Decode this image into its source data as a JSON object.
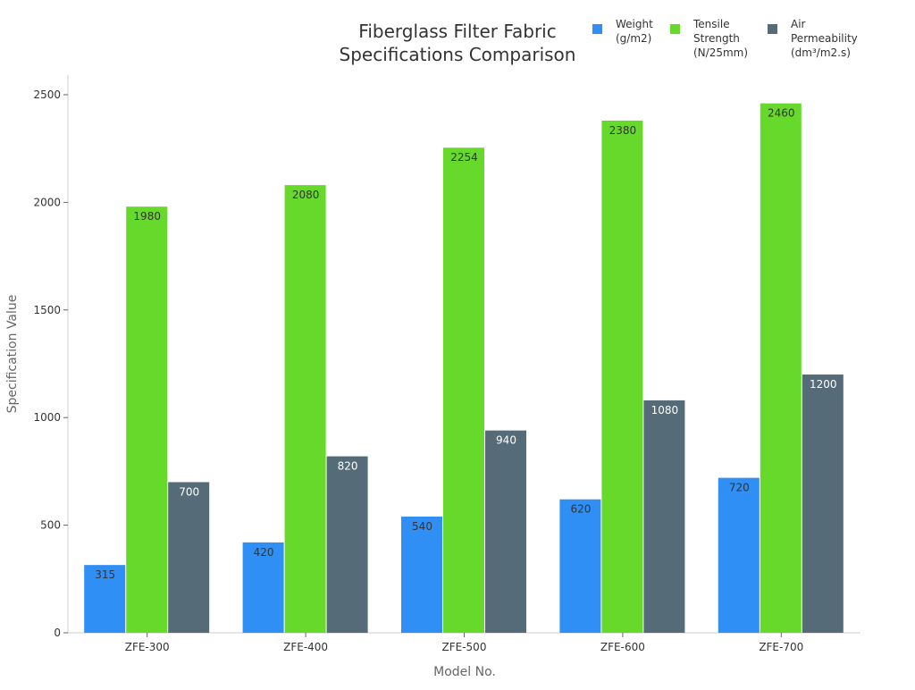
{
  "chart_data": {
    "type": "bar",
    "title": [
      "Fiberglass Filter Fabric",
      "Specifications Comparison"
    ],
    "xlabel": "Model No.",
    "ylabel": "Specification Value",
    "categories": [
      "ZFE-300",
      "ZFE-400",
      "ZFE-500",
      "ZFE-600",
      "ZFE-700"
    ],
    "series": [
      {
        "name": [
          "Weight",
          "(g/m2)"
        ],
        "color": "#2f8ff5",
        "label_color": "#333333",
        "values": [
          315,
          420,
          540,
          620,
          720
        ]
      },
      {
        "name": [
          "Tensile",
          "Strength",
          "(N/25mm)"
        ],
        "color": "#66d92a",
        "label_color": "#333333",
        "values": [
          1980,
          2080,
          2254,
          2380,
          2460
        ]
      },
      {
        "name": [
          "Air",
          "Permeability",
          "(dm³/m2.s)"
        ],
        "color": "#556c78",
        "label_color": "#ffffff",
        "values": [
          700,
          820,
          940,
          1080,
          1200
        ]
      }
    ],
    "ylim": [
      0,
      2600
    ],
    "yticks": [
      0,
      500,
      1000,
      1500,
      2000,
      2500
    ],
    "grid": false,
    "legend_placement": "top-right",
    "data_labels": true
  }
}
